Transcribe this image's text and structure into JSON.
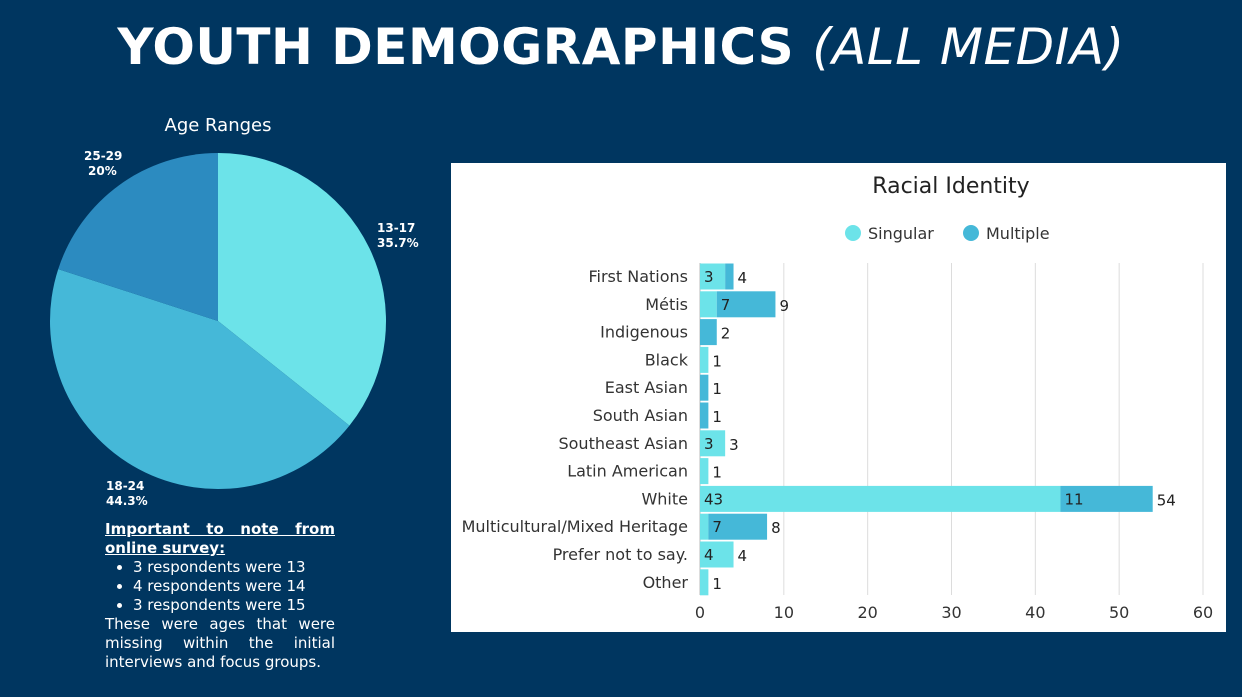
{
  "page": {
    "title_main": "YOUTH DEMOGRAPHICS",
    "title_sub": "(ALL MEDIA)"
  },
  "colors": {
    "background": "#003660",
    "singular": "#6CE3E9",
    "multiple": "#45B8D8",
    "pie": [
      "#6CE3E9",
      "#45B8D8",
      "#2C8BC0"
    ]
  },
  "chart_data": [
    {
      "type": "pie",
      "title": "Age Ranges",
      "slices": [
        {
          "label": "13-17",
          "pct_label": "35.7%",
          "value": 35.7
        },
        {
          "label": "18-24",
          "pct_label": "44.3%",
          "value": 44.3
        },
        {
          "label": "25-29",
          "pct_label": "20%",
          "value": 20
        }
      ]
    },
    {
      "type": "bar",
      "orientation": "horizontal",
      "stacked": true,
      "title": "Racial Identity",
      "categories": [
        "First Nations",
        "Métis",
        "Indigenous",
        "Black",
        "East Asian",
        "South Asian",
        "Southeast Asian",
        "Latin American",
        "White",
        "Multicultural/Mixed Heritage",
        "Prefer not to say.",
        "Other"
      ],
      "series": [
        {
          "name": "Singular",
          "values": [
            3,
            2,
            0,
            1,
            0,
            0,
            3,
            1,
            43,
            1,
            4,
            1
          ],
          "labels": [
            "3",
            "",
            "",
            "",
            "",
            "",
            "3",
            "",
            "43",
            "",
            "4",
            ""
          ]
        },
        {
          "name": "Multiple",
          "values": [
            1,
            7,
            2,
            0,
            1,
            1,
            0,
            0,
            11,
            7,
            0,
            0
          ],
          "labels": [
            "",
            "7",
            "",
            "",
            "",
            "",
            "",
            "",
            "11",
            "7",
            "",
            ""
          ]
        }
      ],
      "totals": [
        "4",
        "9",
        "2",
        "1",
        "1",
        "1",
        "3",
        "1",
        "54",
        "8",
        "4",
        "1"
      ],
      "xlim": [
        0,
        60
      ],
      "xticks": [
        "0",
        "10",
        "20",
        "30",
        "40",
        "50",
        "60"
      ],
      "grid": true,
      "legend": "top"
    }
  ],
  "note": {
    "heading": "Important to note from online survey:",
    "items": [
      "3 respondents were 13",
      "4 respondents were 14",
      "3 respondents were 15"
    ],
    "footer": "These were ages that were missing within the initial interviews and focus groups."
  }
}
